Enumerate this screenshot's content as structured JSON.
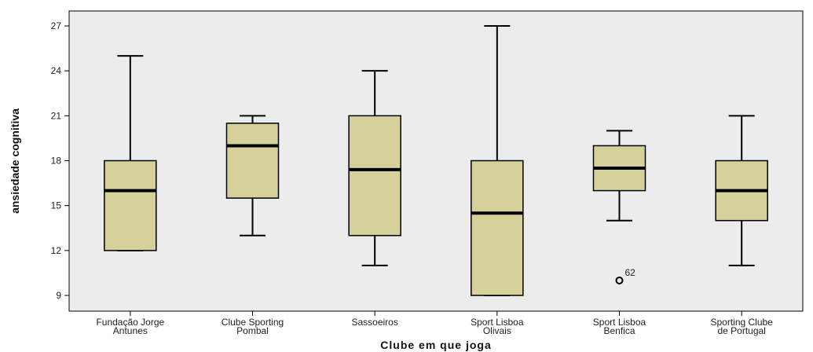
{
  "chart_data": {
    "type": "boxplot",
    "xlabel": "Clube em que joga",
    "ylabel": "ansiedade cognitiva",
    "ylim": [
      8,
      28
    ],
    "yticks": [
      9,
      12,
      15,
      18,
      21,
      24,
      27
    ],
    "grid": false,
    "colors": {
      "plot_bg": "#ececec",
      "box_fill": "#d6d19b",
      "stroke": "#000000"
    },
    "boxes": [
      {
        "label_lines": [
          "Fundação Jorge",
          "Antunes"
        ],
        "min": 12,
        "q1": 12,
        "median": 16,
        "q3": 18,
        "max": 25,
        "outliers": []
      },
      {
        "label_lines": [
          "Clube Sporting",
          "Pombal"
        ],
        "min": 13,
        "q1": 15.5,
        "median": 19,
        "q3": 20.5,
        "max": 21,
        "outliers": []
      },
      {
        "label_lines": [
          "Sassoeiros",
          ""
        ],
        "min": 11,
        "q1": 13,
        "median": 17.4,
        "q3": 21,
        "max": 24,
        "outliers": []
      },
      {
        "label_lines": [
          "Sport Lisboa",
          "Olivais"
        ],
        "min": 9,
        "q1": 9,
        "median": 14.5,
        "q3": 18,
        "max": 27,
        "outliers": []
      },
      {
        "label_lines": [
          "Sport Lisboa",
          "Benfica"
        ],
        "min": 14,
        "q1": 16,
        "median": 17.5,
        "q3": 19,
        "max": 20,
        "outliers": [
          {
            "value": 10,
            "label": "62"
          }
        ]
      },
      {
        "label_lines": [
          "Sporting Clube",
          "de Portugal"
        ],
        "min": 11,
        "q1": 14,
        "median": 16,
        "q3": 18,
        "max": 21,
        "outliers": []
      }
    ]
  }
}
